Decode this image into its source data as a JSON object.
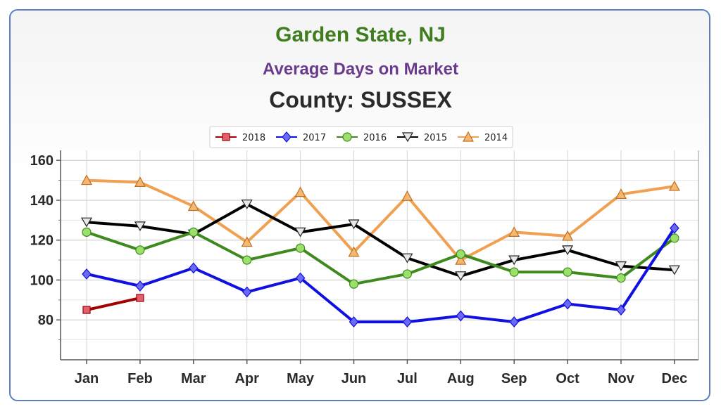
{
  "header": {
    "title": "Garden State, NJ",
    "subtitle": "Average Days on Market",
    "county": "County: SUSSEX"
  },
  "colors": {
    "title": "#3f7d1f",
    "subtitle": "#6a3a8c",
    "frame": "#5b7fc0"
  },
  "chart_data": {
    "type": "line",
    "title": "Garden State, NJ",
    "subtitle": "Average Days on Market",
    "xlabel": "",
    "ylabel": "",
    "categories": [
      "Jan",
      "Feb",
      "Mar",
      "Apr",
      "May",
      "Jun",
      "Jul",
      "Aug",
      "Sep",
      "Oct",
      "Nov",
      "Dec"
    ],
    "ylim": [
      60,
      165
    ],
    "yticks": [
      80,
      100,
      120,
      140,
      160
    ],
    "grid": true,
    "legend_position": "top-center",
    "series": [
      {
        "name": "2018",
        "color": "#a30000",
        "marker": "square",
        "values": [
          85,
          91,
          null,
          null,
          null,
          null,
          null,
          null,
          null,
          null,
          null,
          null
        ]
      },
      {
        "name": "2017",
        "color": "#1010e0",
        "marker": "diamond",
        "values": [
          103,
          97,
          106,
          94,
          101,
          79,
          79,
          82,
          79,
          88,
          85,
          126
        ]
      },
      {
        "name": "2016",
        "color": "#3e8a1e",
        "marker": "circle",
        "values": [
          124,
          115,
          124,
          110,
          116,
          98,
          103,
          113,
          104,
          104,
          101,
          121
        ]
      },
      {
        "name": "2015",
        "color": "#000000",
        "marker": "triangle-down",
        "values": [
          129,
          127,
          123,
          138,
          124,
          128,
          111,
          102,
          110,
          115,
          107,
          105
        ]
      },
      {
        "name": "2014",
        "color": "#f0a050",
        "marker": "triangle-up",
        "values": [
          150,
          149,
          137,
          119,
          144,
          114,
          142,
          110,
          124,
          122,
          143,
          147
        ]
      }
    ]
  }
}
